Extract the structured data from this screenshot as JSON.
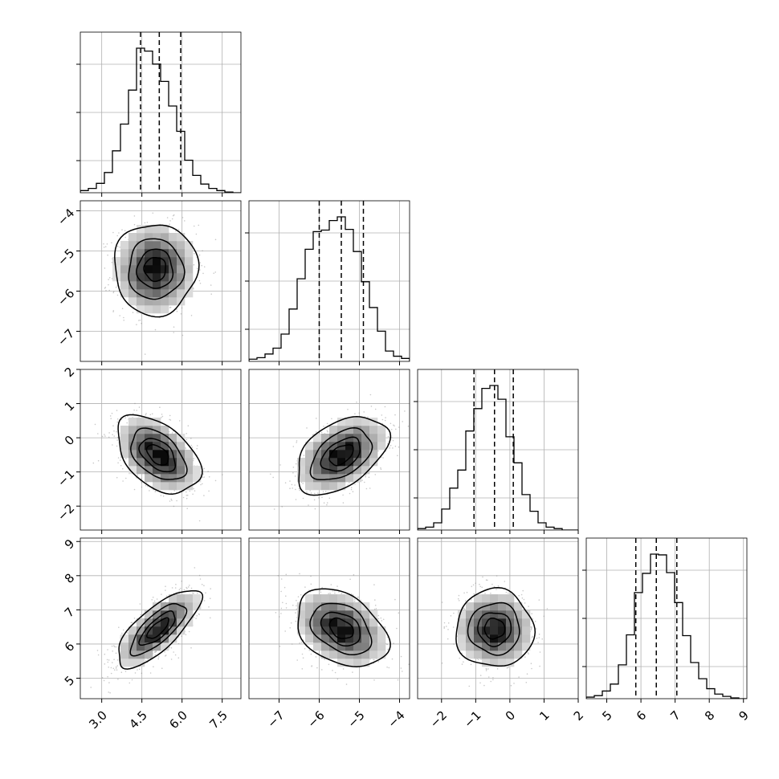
{
  "chart_data": {
    "type": "corner",
    "title": "",
    "params": [
      {
        "range": [
          2.2,
          8.2
        ],
        "ticks": [
          3.0,
          4.5,
          6.0,
          7.5
        ],
        "tick_labels": [
          "3.0",
          "4.5",
          "6.0",
          "7.5"
        ],
        "quantiles": [
          4.45,
          5.15,
          5.95
        ],
        "label": ""
      },
      {
        "range": [
          -7.75,
          -3.75
        ],
        "ticks": [
          -7,
          -6,
          -5,
          -4
        ],
        "tick_labels": [
          "−7",
          "−6",
          "−5",
          "−4"
        ],
        "quantiles": [
          -6.0,
          -5.45,
          -4.9
        ],
        "label": ""
      },
      {
        "range": [
          -2.7,
          2.0
        ],
        "ticks": [
          -2,
          -1,
          0,
          1,
          2
        ],
        "tick_labels": [
          "−2",
          "−1",
          "0",
          "1",
          "2"
        ],
        "quantiles": [
          -1.05,
          -0.45,
          0.1
        ],
        "label": ""
      },
      {
        "range": [
          4.4,
          9.1
        ],
        "ticks": [
          5,
          6,
          7,
          8,
          9
        ],
        "tick_labels": [
          "5",
          "6",
          "7",
          "8",
          "9"
        ],
        "quantiles": [
          5.85,
          6.45,
          7.05
        ],
        "label": ""
      }
    ],
    "histograms": [
      {
        "bin_edges": [
          2.2,
          2.5,
          2.8,
          3.1,
          3.4,
          3.7,
          4.0,
          4.3,
          4.6,
          4.9,
          5.2,
          5.5,
          5.8,
          6.1,
          6.4,
          6.7,
          7.0,
          7.3,
          7.6,
          7.9,
          8.2
        ],
        "counts": [
          3,
          6,
          13,
          28,
          58,
          95,
          142,
          200,
          196,
          178,
          154,
          120,
          85,
          45,
          24,
          12,
          6,
          3,
          1,
          0
        ]
      },
      {
        "bin_edges": [
          -7.75,
          -7.55,
          -7.35,
          -7.15,
          -6.95,
          -6.75,
          -6.55,
          -6.35,
          -6.15,
          -5.95,
          -5.75,
          -5.55,
          -5.35,
          -5.15,
          -4.95,
          -4.75,
          -4.55,
          -4.35,
          -4.15,
          -3.95,
          -3.75
        ],
        "counts": [
          3,
          5,
          10,
          18,
          37,
          71,
          112,
          152,
          176,
          178,
          191,
          196,
          179,
          149,
          108,
          73,
          41,
          14,
          7,
          4
        ]
      },
      {
        "bin_edges": [
          -2.7,
          -2.465,
          -2.23,
          -1.995,
          -1.76,
          -1.525,
          -1.29,
          -1.055,
          -0.82,
          -0.585,
          -0.35,
          -0.115,
          0.12,
          0.355,
          0.59,
          0.825,
          1.06,
          1.295,
          1.53,
          1.765,
          2.0
        ],
        "counts": [
          2,
          4,
          10,
          29,
          58,
          83,
          137,
          168,
          196,
          200,
          181,
          129,
          93,
          49,
          26,
          10,
          4,
          2,
          0,
          0
        ]
      },
      {
        "bin_edges": [
          4.4,
          4.635,
          4.87,
          5.105,
          5.34,
          5.575,
          5.81,
          6.045,
          6.28,
          6.515,
          6.75,
          6.985,
          7.22,
          7.455,
          7.69,
          7.925,
          8.16,
          8.395,
          8.63,
          8.865,
          9.1
        ],
        "counts": [
          2,
          4,
          10,
          19,
          44,
          83,
          138,
          163,
          188,
          187,
          164,
          125,
          82,
          47,
          26,
          13,
          6,
          3,
          1,
          0
        ]
      }
    ],
    "pairs": [
      {
        "x": 0,
        "y": 1,
        "center": [
          5.0,
          -5.45
        ],
        "sigma": [
          0.75,
          0.55
        ],
        "corr": 0.0
      },
      {
        "x": 0,
        "y": 2,
        "center": [
          5.1,
          -0.5
        ],
        "sigma": [
          0.75,
          0.55
        ],
        "corr": -0.45
      },
      {
        "x": 1,
        "y": 2,
        "center": [
          -5.45,
          -0.5
        ],
        "sigma": [
          0.55,
          0.55
        ],
        "corr": 0.45
      },
      {
        "x": 0,
        "y": 3,
        "center": [
          5.1,
          6.45
        ],
        "sigma": [
          0.75,
          0.55
        ],
        "corr": 0.75
      },
      {
        "x": 1,
        "y": 3,
        "center": [
          -5.45,
          6.45
        ],
        "sigma": [
          0.55,
          0.55
        ],
        "corr": -0.35
      },
      {
        "x": 2,
        "y": 3,
        "center": [
          -0.45,
          6.45
        ],
        "sigma": [
          0.55,
          0.55
        ],
        "corr": 0.0
      }
    ],
    "contour_levels_sigma": [
      0.5,
      1.0,
      1.5,
      2.0
    ],
    "grid": true,
    "legend": "none"
  }
}
